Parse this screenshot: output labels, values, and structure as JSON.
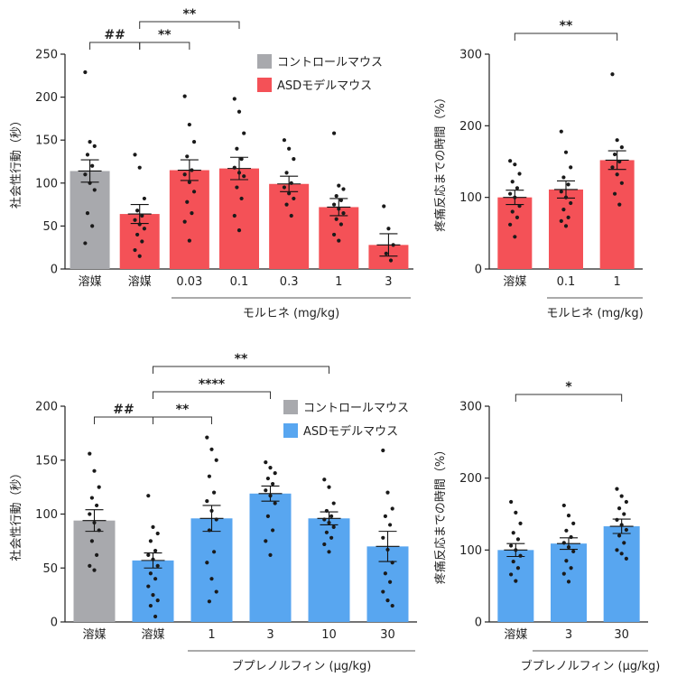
{
  "colors": {
    "control": "#a8a9ad",
    "red": "#f45157",
    "blue": "#58a6f0",
    "axis": "#222222",
    "dot": "#1a1a1a"
  },
  "chart_data": [
    {
      "id": "morphine-social",
      "type": "bar",
      "ylabel": "社会性行動（秒）",
      "ylim": [
        0,
        250
      ],
      "yticks": [
        0,
        50,
        100,
        150,
        200,
        250
      ],
      "categories": [
        "溶媒",
        "溶媒",
        "0.03",
        "0.1",
        "0.3",
        "1",
        "3"
      ],
      "group_label": "モルヒネ (mg/kg)",
      "values": [
        114,
        64,
        115,
        117,
        99,
        72,
        28
      ],
      "errors": [
        13,
        11,
        12,
        13,
        9,
        10,
        13
      ],
      "fill": [
        "control",
        "red",
        "red",
        "red",
        "red",
        "red",
        "red"
      ],
      "points": [
        [
          229,
          148,
          143,
          133,
          120,
          110,
          100,
          92,
          65,
          50,
          30
        ],
        [
          133,
          118,
          82,
          68,
          62,
          57,
          52,
          47,
          40,
          32,
          22,
          15
        ],
        [
          201,
          168,
          148,
          131,
          115,
          110,
          101,
          90,
          78,
          65,
          55,
          33
        ],
        [
          198,
          183,
          158,
          140,
          128,
          118,
          112,
          108,
          95,
          82,
          62,
          45
        ],
        [
          150,
          140,
          128,
          112,
          100,
          95,
          88,
          82,
          75,
          62
        ],
        [
          158,
          97,
          93,
          85,
          80,
          75,
          70,
          65,
          58,
          52,
          40,
          33
        ],
        [
          73,
          47,
          28,
          18,
          10
        ]
      ],
      "legend": [
        {
          "label": "コントロールマウス",
          "fill": "control"
        },
        {
          "label": "ASDモデルマウス",
          "fill": "red"
        }
      ],
      "significance": [
        {
          "from": 0,
          "to": 1,
          "label": "##"
        },
        {
          "from": 1,
          "to": 2,
          "label": "**"
        },
        {
          "from": 1,
          "to": 3,
          "label": "**"
        }
      ]
    },
    {
      "id": "morphine-pain",
      "type": "bar",
      "ylabel": "疼痛反応までの時間（%）",
      "ylim": [
        0,
        300
      ],
      "yticks": [
        0,
        100,
        200,
        300
      ],
      "categories": [
        "溶媒",
        "0.1",
        "1"
      ],
      "group_label": "モルヒネ (mg/kg)",
      "values": [
        100,
        111,
        152
      ],
      "errors": [
        10,
        12,
        13
      ],
      "fill": [
        "red",
        "red",
        "red"
      ],
      "points": [
        [
          151,
          146,
          133,
          122,
          113,
          105,
          100,
          88,
          80,
          72,
          62,
          45
        ],
        [
          192,
          163,
          142,
          128,
          118,
          108,
          100,
          92,
          83,
          72,
          67,
          60
        ],
        [
          272,
          180,
          170,
          160,
          150,
          142,
          132,
          120,
          105,
          90
        ]
      ],
      "significance": [
        {
          "from": 0,
          "to": 2,
          "label": "**"
        }
      ]
    },
    {
      "id": "buprenorphine-social",
      "type": "bar",
      "ylabel": "社会性行動（秒）",
      "ylim": [
        0,
        200
      ],
      "yticks": [
        0,
        50,
        100,
        150,
        200
      ],
      "categories": [
        "溶媒",
        "溶媒",
        "1",
        "3",
        "10",
        "30"
      ],
      "group_label": "ブプレノルフィン (μg/kg)",
      "values": [
        94,
        57,
        96,
        119,
        96,
        70
      ],
      "errors": [
        10,
        7,
        12,
        7,
        6,
        14
      ],
      "fill": [
        "control",
        "blue",
        "blue",
        "blue",
        "blue",
        "blue"
      ],
      "points": [
        [
          156,
          140,
          125,
          115,
          108,
          100,
          92,
          85,
          75,
          62,
          52,
          48
        ],
        [
          117,
          88,
          82,
          75,
          66,
          62,
          58,
          52,
          45,
          40,
          33,
          25,
          20,
          15,
          5
        ],
        [
          171,
          160,
          150,
          135,
          120,
          112,
          103,
          95,
          85,
          65,
          55,
          40,
          28,
          19
        ],
        [
          148,
          143,
          138,
          133,
          128,
          122,
          117,
          110,
          98,
          85,
          75,
          62
        ],
        [
          132,
          125,
          110,
          103,
          98,
          95,
          92,
          88,
          83,
          78,
          72,
          65
        ],
        [
          159,
          120,
          105,
          98,
          90,
          78,
          67,
          55,
          45,
          37,
          28,
          20,
          15
        ]
      ],
      "legend": [
        {
          "label": "コントロールマウス",
          "fill": "control"
        },
        {
          "label": "ASDモデルマウス",
          "fill": "blue"
        }
      ],
      "significance": [
        {
          "from": 0,
          "to": 1,
          "label": "##"
        },
        {
          "from": 1,
          "to": 2,
          "label": "**"
        },
        {
          "from": 1,
          "to": 3,
          "label": "****"
        },
        {
          "from": 1,
          "to": 4,
          "label": "**"
        }
      ]
    },
    {
      "id": "buprenorphine-pain",
      "type": "bar",
      "ylabel": "疼痛反応までの時間（%）",
      "ylim": [
        0,
        300
      ],
      "yticks": [
        0,
        100,
        200,
        300
      ],
      "categories": [
        "溶媒",
        "3",
        "30"
      ],
      "group_label": "ブプレノルフィン (μg/kg)",
      "values": [
        100,
        109,
        133
      ],
      "errors": [
        9,
        8,
        10
      ],
      "fill": [
        "blue",
        "blue",
        "blue"
      ],
      "points": [
        [
          167,
          152,
          137,
          124,
          115,
          106,
          100,
          92,
          84,
          75,
          66,
          57
        ],
        [
          162,
          148,
          137,
          127,
          118,
          110,
          104,
          98,
          85,
          75,
          67,
          56
        ],
        [
          185,
          175,
          167,
          158,
          150,
          142,
          135,
          128,
          120,
          110,
          100,
          95,
          88
        ]
      ],
      "significance": [
        {
          "from": 0,
          "to": 2,
          "label": "*"
        }
      ]
    }
  ]
}
